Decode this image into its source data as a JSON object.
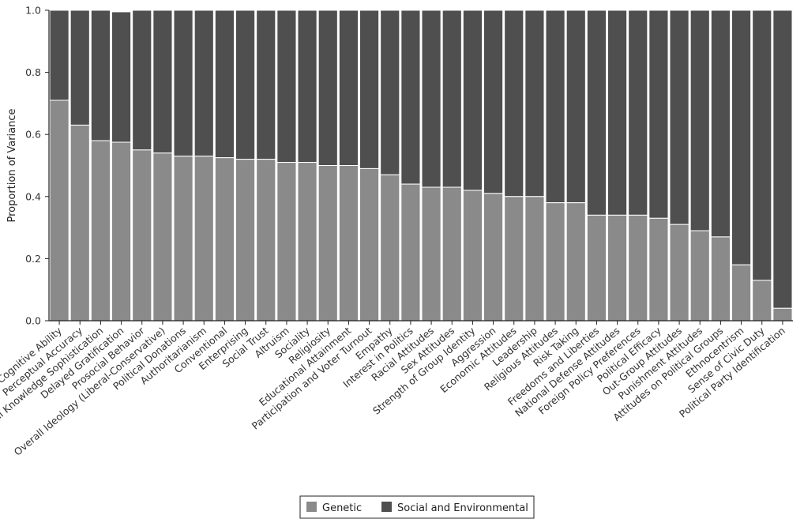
{
  "chart_data": {
    "type": "bar",
    "stacked": true,
    "title": "",
    "xlabel": "",
    "ylabel": "Proportion of Variance",
    "ylim": [
      0,
      1.0
    ],
    "yticks": [
      "0.0",
      "0.2",
      "0.4",
      "0.6",
      "0.8",
      "1.0"
    ],
    "grid": false,
    "legend_position": "bottom-center",
    "categories": [
      "Cognitive Ability",
      "Perceptual Accuracy",
      "Political Knowledge Sophistication",
      "Delayed Gratification",
      "Prosocial Behavior",
      "Overall Ideology (Liberal-Conservative)",
      "Political Donations",
      "Authoritarianism",
      "Conventional",
      "Enterprising",
      "Social Trust",
      "Altruism",
      "Sociality",
      "Religiosity",
      "Educational Attainment",
      "Participation and Voter Turnout",
      "Empathy",
      "Interest in Politics",
      "Racial Attitudes",
      "Sex Attitudes",
      "Strength of Group Identity",
      "Aggression",
      "Economic Attitudes",
      "Leadership",
      "Religious Attitudes",
      "Risk Taking",
      "Freedoms and Liberties",
      "National Defense Attitudes",
      "Foreign Policy Preferences",
      "Political Efficacy",
      "Out-Group Attitudes",
      "Punishment Attitudes",
      "Attitudes on Political Groups",
      "Ethnocentrism",
      "Sense of Civic Duty",
      "Political Party Identification"
    ],
    "series": [
      {
        "name": "Genetic",
        "color": "#8a8a8a",
        "values": [
          0.71,
          0.63,
          0.58,
          0.575,
          0.55,
          0.54,
          0.53,
          0.53,
          0.525,
          0.52,
          0.52,
          0.51,
          0.51,
          0.5,
          0.5,
          0.49,
          0.47,
          0.44,
          0.43,
          0.43,
          0.42,
          0.41,
          0.4,
          0.4,
          0.38,
          0.38,
          0.34,
          0.34,
          0.34,
          0.33,
          0.31,
          0.29,
          0.27,
          0.18,
          0.13,
          0.04
        ]
      },
      {
        "name": "Social and Environmental",
        "color": "#4f4f4f",
        "values": [
          0.29,
          0.37,
          0.42,
          0.42,
          0.45,
          0.46,
          0.47,
          0.47,
          0.475,
          0.48,
          0.48,
          0.49,
          0.49,
          0.5,
          0.5,
          0.51,
          0.53,
          0.56,
          0.57,
          0.57,
          0.58,
          0.59,
          0.6,
          0.6,
          0.62,
          0.62,
          0.66,
          0.66,
          0.66,
          0.67,
          0.69,
          0.71,
          0.73,
          0.82,
          0.87,
          0.96
        ]
      }
    ]
  }
}
